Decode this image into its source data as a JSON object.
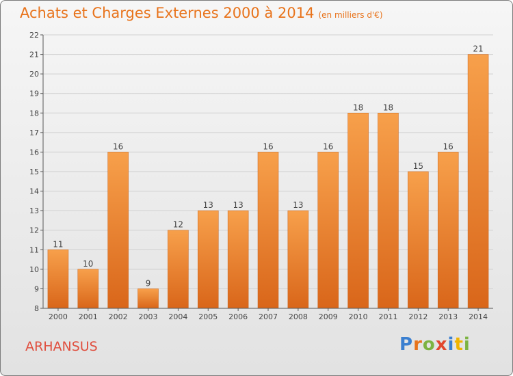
{
  "chart_data": {
    "type": "bar",
    "title": "Achats et Charges Externes 2000 à 2014",
    "subtitle": "(en milliers d'€)",
    "categories": [
      "2000",
      "2001",
      "2002",
      "2003",
      "2004",
      "2005",
      "2006",
      "2007",
      "2008",
      "2009",
      "2010",
      "2011",
      "2012",
      "2013",
      "2014"
    ],
    "values": [
      11,
      10,
      16,
      9,
      12,
      13,
      13,
      16,
      13,
      16,
      18,
      18,
      15,
      16,
      21
    ],
    "ylim": [
      8,
      22
    ],
    "yticks": [
      8,
      9,
      10,
      11,
      12,
      13,
      14,
      15,
      16,
      17,
      18,
      19,
      20,
      21,
      22
    ],
    "grid": true,
    "bar_color": "#f0801f"
  },
  "footer": {
    "place": "ARHANSUS",
    "logo": "Proxiti",
    "logo_letters": [
      {
        "ch": "P",
        "color": "#3a7fd0"
      },
      {
        "ch": "r",
        "color": "#e8731b"
      },
      {
        "ch": "o",
        "color": "#7cb342"
      },
      {
        "ch": "x",
        "color": "#e2462e"
      },
      {
        "ch": "i",
        "color": "#3a7fd0"
      },
      {
        "ch": "t",
        "color": "#f0b400"
      },
      {
        "ch": "i",
        "color": "#7cb342"
      }
    ]
  }
}
